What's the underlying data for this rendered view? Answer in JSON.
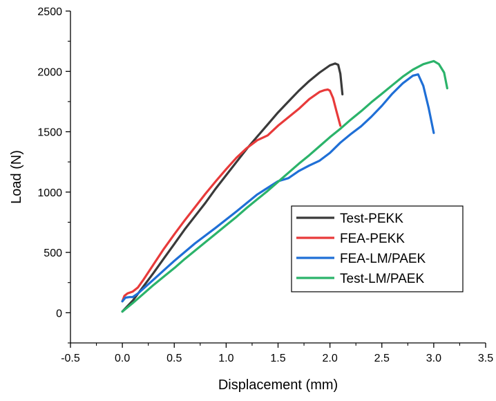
{
  "chart_data": {
    "type": "line",
    "title": "",
    "xlabel": "Displacement (mm)",
    "ylabel": "Load (N)",
    "xlim": [
      -0.5,
      3.5
    ],
    "ylim": [
      -250,
      2500
    ],
    "x_ticks": [
      -0.5,
      0.0,
      0.5,
      1.0,
      1.5,
      2.0,
      2.5,
      3.0,
      3.5
    ],
    "x_tick_labels": [
      "-0.5",
      "0.0",
      "0.5",
      "1.0",
      "1.5",
      "2.0",
      "2.5",
      "3.0",
      "3.5"
    ],
    "y_ticks": [
      0,
      500,
      1000,
      1500,
      2000,
      2500
    ],
    "y_tick_labels": [
      "0",
      "500",
      "1000",
      "1500",
      "2000",
      "2500"
    ],
    "grid": false,
    "legend_position": "lower-right",
    "series": [
      {
        "name": "Test-PEKK",
        "color": "#3a3a3a",
        "x": [
          0.0,
          0.1,
          0.2,
          0.3,
          0.4,
          0.5,
          0.6,
          0.7,
          0.8,
          0.9,
          1.0,
          1.1,
          1.2,
          1.3,
          1.4,
          1.5,
          1.6,
          1.7,
          1.8,
          1.9,
          2.0,
          2.05,
          2.08,
          2.1,
          2.12
        ],
        "y": [
          10,
          100,
          215,
          330,
          450,
          570,
          690,
          800,
          910,
          1030,
          1140,
          1250,
          1360,
          1460,
          1560,
          1660,
          1750,
          1840,
          1920,
          1990,
          2050,
          2065,
          2055,
          1980,
          1810
        ]
      },
      {
        "name": "FEA-PEKK",
        "color": "#e83a3a",
        "x": [
          0.0,
          0.02,
          0.05,
          0.1,
          0.15,
          0.2,
          0.3,
          0.4,
          0.5,
          0.6,
          0.7,
          0.8,
          0.9,
          1.0,
          1.1,
          1.2,
          1.3,
          1.35,
          1.4,
          1.5,
          1.6,
          1.7,
          1.8,
          1.9,
          1.95,
          1.98,
          2.0,
          2.03,
          2.06,
          2.1
        ],
        "y": [
          95,
          140,
          160,
          175,
          210,
          270,
          400,
          530,
          650,
          765,
          875,
          985,
          1090,
          1190,
          1285,
          1365,
          1430,
          1450,
          1470,
          1550,
          1620,
          1690,
          1770,
          1830,
          1845,
          1850,
          1840,
          1780,
          1680,
          1550
        ]
      },
      {
        "name": "FEA-LM/PAEK",
        "color": "#1f6fd6",
        "x": [
          0.0,
          0.03,
          0.07,
          0.1,
          0.15,
          0.3,
          0.5,
          0.7,
          0.9,
          1.1,
          1.3,
          1.5,
          1.6,
          1.7,
          1.8,
          1.9,
          2.0,
          2.1,
          2.2,
          2.3,
          2.4,
          2.5,
          2.6,
          2.7,
          2.8,
          2.85,
          2.9,
          2.95,
          3.0
        ],
        "y": [
          95,
          125,
          130,
          130,
          160,
          275,
          430,
          575,
          705,
          840,
          980,
          1090,
          1115,
          1175,
          1220,
          1260,
          1325,
          1410,
          1480,
          1545,
          1625,
          1715,
          1815,
          1900,
          1965,
          1975,
          1880,
          1700,
          1490
        ]
      },
      {
        "name": "Test-LM/PAEK",
        "color": "#2bb36a",
        "x": [
          0.0,
          0.1,
          0.2,
          0.3,
          0.4,
          0.5,
          0.6,
          0.7,
          0.8,
          0.9,
          1.0,
          1.1,
          1.2,
          1.3,
          1.4,
          1.5,
          1.6,
          1.7,
          1.8,
          1.9,
          2.0,
          2.1,
          2.2,
          2.3,
          2.4,
          2.5,
          2.6,
          2.7,
          2.8,
          2.9,
          3.0,
          3.05,
          3.1,
          3.13
        ],
        "y": [
          10,
          80,
          155,
          230,
          300,
          370,
          445,
          515,
          585,
          655,
          725,
          795,
          870,
          940,
          1010,
          1085,
          1160,
          1235,
          1305,
          1380,
          1455,
          1525,
          1600,
          1670,
          1745,
          1815,
          1885,
          1955,
          2015,
          2060,
          2085,
          2060,
          1990,
          1860
        ]
      }
    ]
  }
}
